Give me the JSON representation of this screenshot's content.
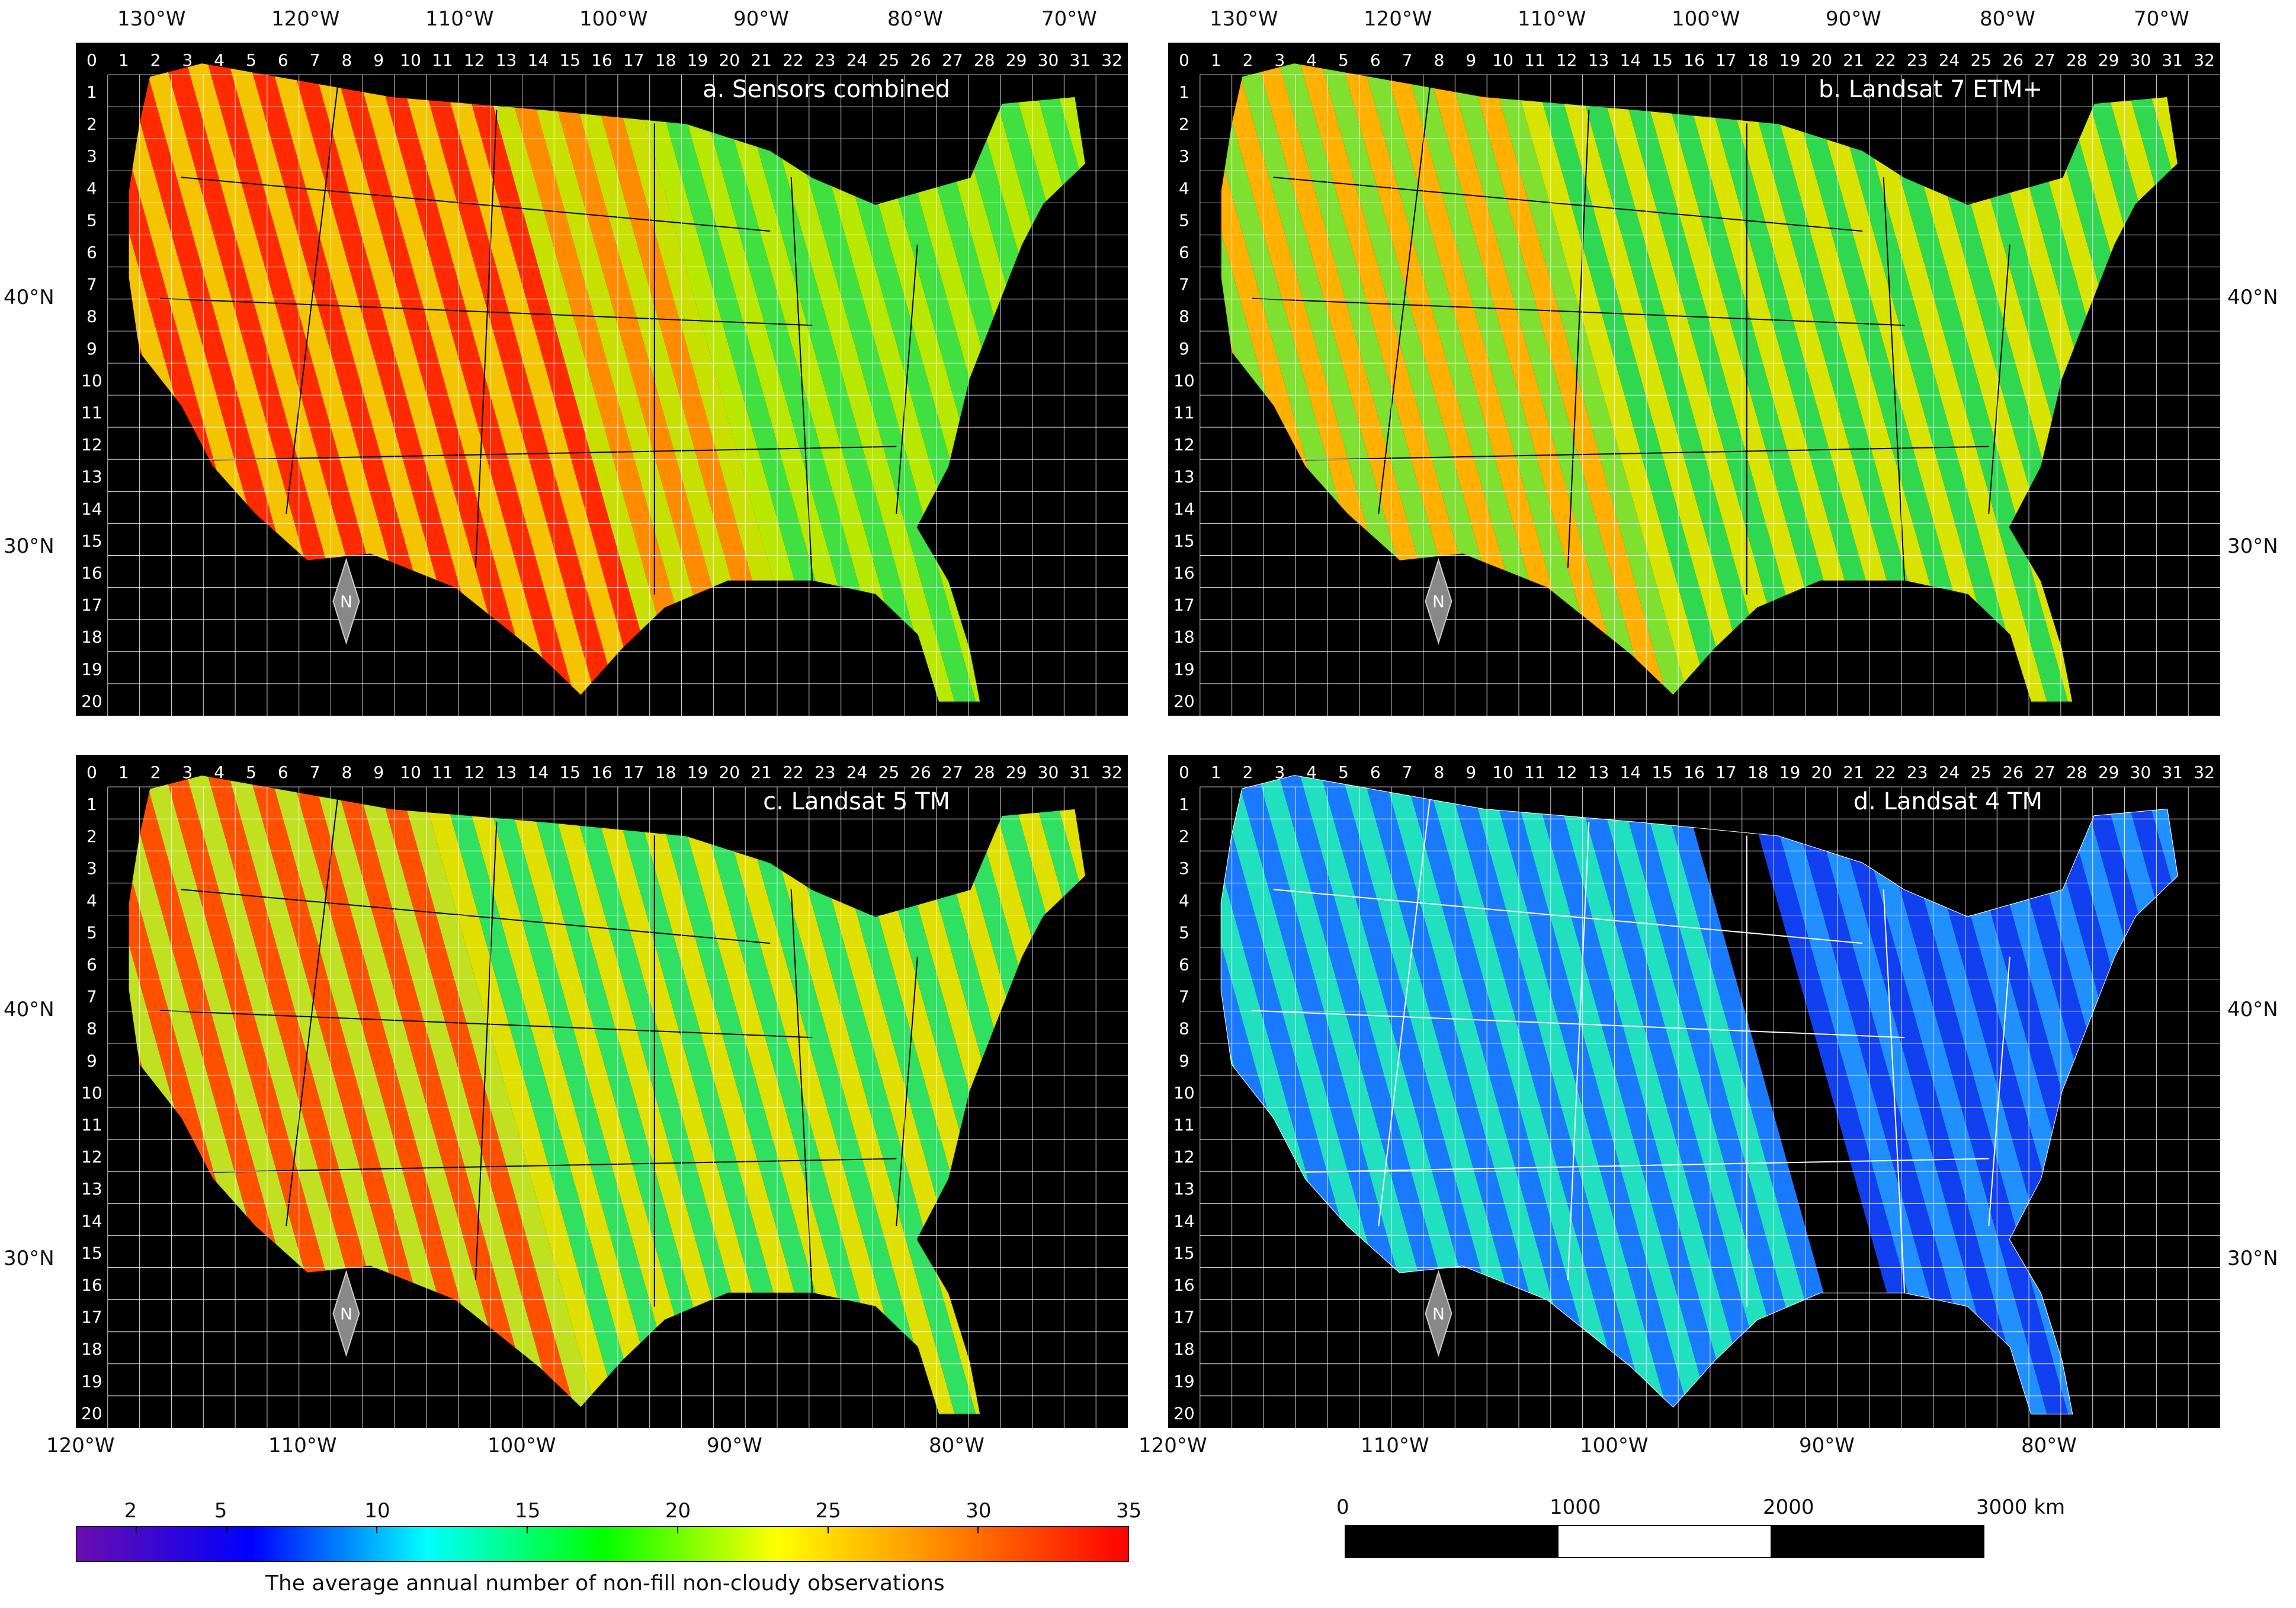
{
  "panels": [
    {
      "id": "a",
      "title": "a. Sensors combined",
      "scheme": "combined"
    },
    {
      "id": "b",
      "title": "b. Landsat 7 ETM+",
      "scheme": "l7"
    },
    {
      "id": "c",
      "title": "c. Landsat 5 TM",
      "scheme": "l5"
    },
    {
      "id": "d",
      "title": "d. Landsat 4 TM",
      "scheme": "l4"
    }
  ],
  "grid": {
    "columns": [
      "0",
      "1",
      "2",
      "3",
      "4",
      "5",
      "6",
      "7",
      "8",
      "9",
      "10",
      "11",
      "12",
      "13",
      "14",
      "15",
      "16",
      "17",
      "18",
      "19",
      "20",
      "21",
      "22",
      "23",
      "24",
      "25",
      "26",
      "27",
      "28",
      "29",
      "30",
      "31",
      "32"
    ],
    "rows": [
      "0",
      "1",
      "2",
      "3",
      "4",
      "5",
      "6",
      "7",
      "8",
      "9",
      "10",
      "11",
      "12",
      "13",
      "14",
      "15",
      "16",
      "17",
      "18",
      "19",
      "20"
    ]
  },
  "axes": {
    "top_lon": [
      "130°W",
      "120°W",
      "110°W",
      "100°W",
      "90°W",
      "80°W",
      "70°W"
    ],
    "bottom_lon": [
      "120°W",
      "110°W",
      "100°W",
      "90°W",
      "80°W"
    ],
    "lat": [
      "40°N",
      "30°N"
    ]
  },
  "colorbar": {
    "ticks": [
      "2",
      "5",
      "10",
      "15",
      "20",
      "25",
      "30",
      "35"
    ],
    "tick_values": [
      2,
      5,
      10,
      15,
      20,
      25,
      30,
      35
    ],
    "min": 0,
    "max": 35,
    "label": "The average annual number of non-fill non-cloudy observations",
    "colors": [
      "#6a0dad",
      "#0000ff",
      "#00ffff",
      "#00ff00",
      "#ffff00",
      "#ff8000",
      "#ff0000"
    ]
  },
  "scalebar": {
    "ticks": [
      "0",
      "1000",
      "2000",
      "3000 km"
    ],
    "tick_values": [
      0,
      1000,
      2000,
      3000
    ]
  },
  "north_arrow": {
    "letter": "N",
    "icon": "north-arrow-icon"
  },
  "colors": {
    "background": "#000000",
    "grid": "#ffffff",
    "combined_base": "#f0a020",
    "l7_base": "#40e040",
    "l5_base": "#7ee030",
    "l4_base": "#1f6cff"
  }
}
